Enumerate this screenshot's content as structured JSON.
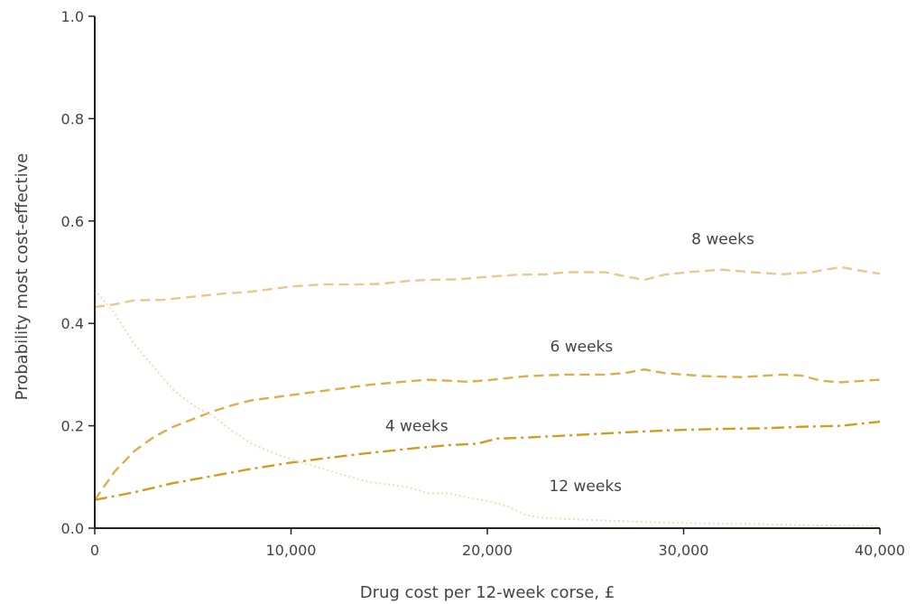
{
  "chart_data": {
    "type": "line",
    "title": "",
    "xlabel": "Drug cost per 12-week corse, £",
    "ylabel": "Probability most cost-effective",
    "xlim": [
      0,
      40000
    ],
    "ylim": [
      0,
      1
    ],
    "grid": false,
    "x_ticks": [
      {
        "value": 0,
        "label": "0"
      },
      {
        "value": 10000,
        "label": "10,000"
      },
      {
        "value": 20000,
        "label": "20,000"
      },
      {
        "value": 30000,
        "label": "30,000"
      },
      {
        "value": 40000,
        "label": "40,000"
      }
    ],
    "y_ticks": [
      {
        "value": 0,
        "label": "0.0"
      },
      {
        "value": 0.2,
        "label": "0.2"
      },
      {
        "value": 0.4,
        "label": "0.4"
      },
      {
        "value": 0.6,
        "label": "0.6"
      },
      {
        "value": 0.8,
        "label": "0.8"
      },
      {
        "value": 1.0,
        "label": "1.0"
      }
    ],
    "series": [
      {
        "name": "8 weeks",
        "color": "#e8c890",
        "dash": "dashed",
        "label_at": [
          32000,
          0.555
        ],
        "points": [
          [
            0,
            0.432
          ],
          [
            1000,
            0.437
          ],
          [
            2000,
            0.445
          ],
          [
            3500,
            0.446
          ],
          [
            5000,
            0.452
          ],
          [
            6500,
            0.458
          ],
          [
            8000,
            0.462
          ],
          [
            10000,
            0.472
          ],
          [
            11500,
            0.476
          ],
          [
            13000,
            0.476
          ],
          [
            14500,
            0.477
          ],
          [
            16000,
            0.483
          ],
          [
            17000,
            0.485
          ],
          [
            18500,
            0.486
          ],
          [
            20000,
            0.491
          ],
          [
            21500,
            0.495
          ],
          [
            23000,
            0.496
          ],
          [
            24000,
            0.5
          ],
          [
            25000,
            0.5
          ],
          [
            26000,
            0.5
          ],
          [
            27000,
            0.492
          ],
          [
            28000,
            0.485
          ],
          [
            29000,
            0.495
          ],
          [
            30500,
            0.501
          ],
          [
            32000,
            0.505
          ],
          [
            33500,
            0.5
          ],
          [
            35000,
            0.496
          ],
          [
            36500,
            0.5
          ],
          [
            38000,
            0.51
          ],
          [
            39000,
            0.503
          ],
          [
            40000,
            0.497
          ]
        ]
      },
      {
        "name": "6 weeks",
        "color": "#dcae4c",
        "dash": "dashed",
        "label_at": [
          24800,
          0.345
        ],
        "points": [
          [
            0,
            0.055
          ],
          [
            1000,
            0.11
          ],
          [
            2000,
            0.15
          ],
          [
            3000,
            0.178
          ],
          [
            4000,
            0.198
          ],
          [
            5000,
            0.213
          ],
          [
            6000,
            0.228
          ],
          [
            7000,
            0.24
          ],
          [
            8000,
            0.25
          ],
          [
            10000,
            0.26
          ],
          [
            12000,
            0.27
          ],
          [
            14000,
            0.28
          ],
          [
            16000,
            0.287
          ],
          [
            17000,
            0.29
          ],
          [
            18000,
            0.288
          ],
          [
            19000,
            0.286
          ],
          [
            20000,
            0.289
          ],
          [
            22000,
            0.297
          ],
          [
            24000,
            0.3
          ],
          [
            26000,
            0.3
          ],
          [
            27000,
            0.303
          ],
          [
            28000,
            0.31
          ],
          [
            29000,
            0.303
          ],
          [
            31000,
            0.297
          ],
          [
            33000,
            0.295
          ],
          [
            35000,
            0.3
          ],
          [
            36000,
            0.298
          ],
          [
            37000,
            0.288
          ],
          [
            38000,
            0.285
          ],
          [
            40000,
            0.29
          ]
        ]
      },
      {
        "name": "4 weeks",
        "color": "#cf9d1f",
        "dash": "dashdot",
        "label_at": [
          16400,
          0.19
        ],
        "points": [
          [
            0,
            0.055
          ],
          [
            2000,
            0.07
          ],
          [
            4000,
            0.088
          ],
          [
            6000,
            0.102
          ],
          [
            8000,
            0.116
          ],
          [
            10000,
            0.128
          ],
          [
            12000,
            0.138
          ],
          [
            14000,
            0.147
          ],
          [
            16000,
            0.155
          ],
          [
            18000,
            0.162
          ],
          [
            19500,
            0.165
          ],
          [
            20500,
            0.175
          ],
          [
            22000,
            0.177
          ],
          [
            24000,
            0.181
          ],
          [
            26000,
            0.185
          ],
          [
            28000,
            0.189
          ],
          [
            30000,
            0.192
          ],
          [
            32000,
            0.194
          ],
          [
            34000,
            0.195
          ],
          [
            36000,
            0.198
          ],
          [
            38000,
            0.2
          ],
          [
            40000,
            0.208
          ]
        ]
      },
      {
        "name": "12 weeks",
        "color": "#f0dcb6",
        "dash": "dotted",
        "label_at": [
          25000,
          0.072
        ],
        "points": [
          [
            0,
            0.465
          ],
          [
            1000,
            0.42
          ],
          [
            2000,
            0.36
          ],
          [
            3000,
            0.315
          ],
          [
            4000,
            0.27
          ],
          [
            5000,
            0.24
          ],
          [
            6000,
            0.22
          ],
          [
            7000,
            0.19
          ],
          [
            8000,
            0.165
          ],
          [
            9000,
            0.148
          ],
          [
            10000,
            0.135
          ],
          [
            11000,
            0.123
          ],
          [
            12000,
            0.112
          ],
          [
            13000,
            0.1
          ],
          [
            14000,
            0.09
          ],
          [
            15000,
            0.085
          ],
          [
            16000,
            0.08
          ],
          [
            17000,
            0.068
          ],
          [
            18000,
            0.068
          ],
          [
            19000,
            0.06
          ],
          [
            20000,
            0.053
          ],
          [
            21000,
            0.043
          ],
          [
            22000,
            0.025
          ],
          [
            23000,
            0.02
          ],
          [
            24000,
            0.018
          ],
          [
            26000,
            0.015
          ],
          [
            28000,
            0.012
          ],
          [
            30000,
            0.01
          ],
          [
            32000,
            0.009
          ],
          [
            34000,
            0.008
          ],
          [
            36000,
            0.006
          ],
          [
            38000,
            0.005
          ],
          [
            40000,
            0.004
          ]
        ]
      }
    ]
  }
}
